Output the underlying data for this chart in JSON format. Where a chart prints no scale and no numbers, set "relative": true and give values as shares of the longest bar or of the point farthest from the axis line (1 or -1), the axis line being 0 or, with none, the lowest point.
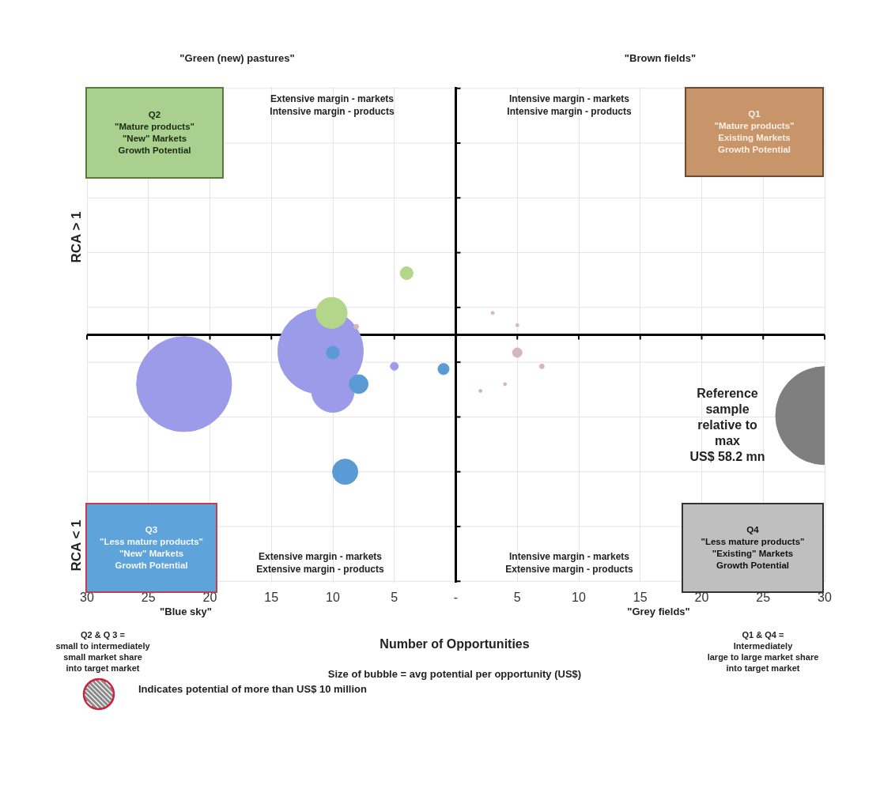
{
  "chart_data": {
    "type": "bubble",
    "xlabel": "Number of Opportunities",
    "relative": true,
    "grid": true,
    "xlim": [
      -30,
      30
    ],
    "xticks": [
      {
        "value": -30,
        "label": "30"
      },
      {
        "value": -25,
        "label": "25"
      },
      {
        "value": -20,
        "label": "20"
      },
      {
        "value": -15,
        "label": "15"
      },
      {
        "value": -10,
        "label": "10"
      },
      {
        "value": -5,
        "label": "5"
      },
      {
        "value": 0,
        "label": "-"
      },
      5,
      10,
      15,
      20,
      25,
      30
    ],
    "series": [
      {
        "color": "#9b9bea",
        "x": [
          -22.1,
          -11,
          -10,
          -5
        ],
        "values": [
          -0.36,
          -0.12,
          -0.41,
          -0.23
        ],
        "sizes": [
          0.94,
          0.76,
          0.19,
          0.0065
        ]
      },
      {
        "color": "#b3d68a",
        "x": [
          -10.1,
          -4
        ],
        "values": [
          0.16,
          0.45
        ],
        "sizes": [
          0.1,
          0.017
        ]
      },
      {
        "color": "#5b9bd5",
        "x": [
          -10,
          -7.9,
          -1,
          -9
        ],
        "values": [
          -0.13,
          -0.36,
          -0.25,
          -1
        ],
        "sizes": [
          0.017,
          0.037,
          0.013,
          0.067
        ]
      },
      {
        "color": "#d8b4bc",
        "x": [
          -8.1,
          3,
          5,
          5,
          7,
          4,
          2
        ],
        "values": [
          0.06,
          0.16,
          0.07,
          -0.13,
          -0.23,
          -0.36,
          -0.41
        ],
        "sizes": [
          0.0023,
          0.001,
          0.001,
          0.0094,
          0.0023,
          0.001,
          0.001
        ]
      },
      {
        "color": "#7f7f7f",
        "x": [
          30
        ],
        "values": [
          -0.59
        ],
        "sizes": [
          1
        ]
      }
    ],
    "annotations": [
      "\"Green (new) pastures\"",
      "\"Brown fields\"",
      "Q2\n\"Mature products\"\n\"New\" Markets\nGrowth Potential",
      "Extensive margin - markets\nIntensive margin - products",
      "Intensive margin - markets\nIntensive margin - products",
      "Q1\n\"Mature products\"\nExisting Markets\nGrowth Potential",
      "Reference\nsample\nrelative to\nmax\nUS$ 58.2 mn",
      "Q3\n\"Less mature products\"\n\"New\" Markets\nGrowth Potential",
      "Extensive margin - markets\nExtensive margin - products",
      "Intensive margin - markets\nExtensive margin - products",
      "Q4\n\"Less mature products\"\n\"Existing\" Markets\nGrowth Potential",
      "\"Blue sky\"",
      "\"Grey fields\"",
      "Q2 & Q 3 =\nsmall to intermediately\nsmall market share\ninto target market",
      "Size of bubble = avg potential per opportunity (US$)",
      "Q1 & Q4 =\nIntermediately\nlarge to large market share\ninto target market",
      "Indicates potential of more than US$ 10 million",
      "RCA > 1",
      "RCA < 1"
    ]
  }
}
